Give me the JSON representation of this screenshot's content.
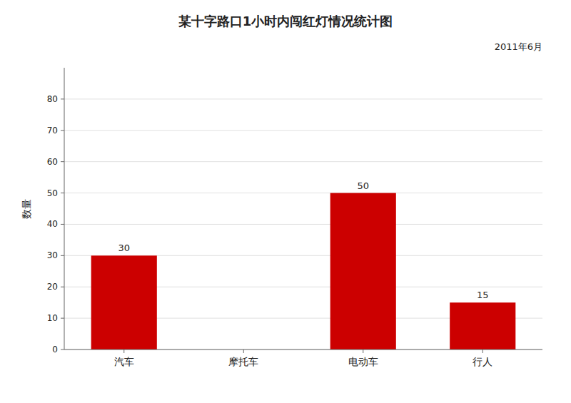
{
  "chart_data": {
    "type": "bar",
    "title": "某十字路口1小时内闯红灯情况统计图",
    "subtitle": "2011年6月",
    "y_label": "数量",
    "categories": [
      "汽车",
      "摩托车",
      "电动车",
      "行人"
    ],
    "values": [
      30,
      0,
      50,
      15
    ],
    "color": "#cc0000",
    "ylim": [
      0,
      90
    ],
    "yticks": [
      0,
      10,
      20,
      30,
      40,
      50,
      60,
      70,
      80
    ],
    "grid": true,
    "data_labels": true
  }
}
